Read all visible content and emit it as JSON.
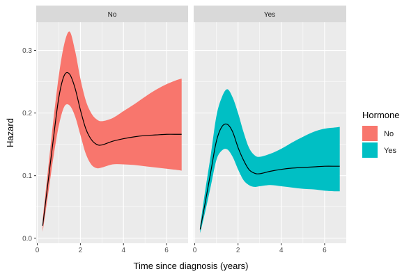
{
  "chart_data": {
    "type": "area",
    "facet_variable": "Hormone",
    "panels": [
      {
        "label": "No",
        "color": "#F8766D",
        "x": [
          0.25,
          0.5,
          0.75,
          1.0,
          1.25,
          1.5,
          1.75,
          2.0,
          2.25,
          2.5,
          2.75,
          3.0,
          3.5,
          4.0,
          4.5,
          5.0,
          5.5,
          6.0,
          6.5,
          6.7
        ],
        "hazard": [
          0.02,
          0.09,
          0.16,
          0.225,
          0.26,
          0.262,
          0.24,
          0.205,
          0.175,
          0.158,
          0.15,
          0.149,
          0.155,
          0.159,
          0.162,
          0.164,
          0.165,
          0.166,
          0.166,
          0.166
        ],
        "lower": [
          0.01,
          0.07,
          0.13,
          0.18,
          0.21,
          0.212,
          0.195,
          0.165,
          0.135,
          0.118,
          0.112,
          0.113,
          0.118,
          0.118,
          0.117,
          0.115,
          0.113,
          0.111,
          0.109,
          0.108
        ],
        "upper": [
          0.03,
          0.11,
          0.19,
          0.26,
          0.31,
          0.33,
          0.3,
          0.255,
          0.22,
          0.2,
          0.19,
          0.187,
          0.192,
          0.203,
          0.214,
          0.226,
          0.237,
          0.246,
          0.253,
          0.255
        ]
      },
      {
        "label": "Yes",
        "color": "#00BFC4",
        "x": [
          0.25,
          0.5,
          0.75,
          1.0,
          1.25,
          1.5,
          1.75,
          2.0,
          2.25,
          2.5,
          2.75,
          3.0,
          3.5,
          4.0,
          4.5,
          5.0,
          5.5,
          6.0,
          6.5,
          6.7
        ],
        "hazard": [
          0.014,
          0.06,
          0.108,
          0.155,
          0.178,
          0.182,
          0.17,
          0.145,
          0.125,
          0.11,
          0.104,
          0.103,
          0.107,
          0.11,
          0.112,
          0.113,
          0.114,
          0.115,
          0.115,
          0.115
        ],
        "lower": [
          0.008,
          0.045,
          0.085,
          0.125,
          0.14,
          0.142,
          0.13,
          0.11,
          0.093,
          0.085,
          0.082,
          0.083,
          0.085,
          0.083,
          0.081,
          0.079,
          0.078,
          0.076,
          0.075,
          0.075
        ],
        "upper": [
          0.02,
          0.08,
          0.135,
          0.195,
          0.225,
          0.238,
          0.225,
          0.2,
          0.17,
          0.145,
          0.133,
          0.13,
          0.135,
          0.143,
          0.153,
          0.162,
          0.17,
          0.175,
          0.177,
          0.178
        ]
      }
    ],
    "xlabel": "Time since diagnosis (years)",
    "ylabel": "Hazard",
    "xlim": [
      -0.05,
      7.0
    ],
    "ylim": [
      -0.008,
      0.345
    ],
    "x_ticks": [
      0,
      2,
      4,
      6
    ],
    "x_tick_labels": [
      "0",
      "2",
      "4",
      "6"
    ],
    "y_ticks": [
      0.0,
      0.1,
      0.2,
      0.3
    ],
    "y_tick_labels": [
      "0.0",
      "0.1",
      "0.2",
      "0.3"
    ],
    "grid": true,
    "legend": {
      "title": "Hormone",
      "placement": "right",
      "entries": [
        {
          "label": "No",
          "color": "#F8766D"
        },
        {
          "label": "Yes",
          "color": "#00BFC4"
        }
      ]
    },
    "colors": {
      "panel_background": "#EBEBEB",
      "strip_background": "#D9D9D9",
      "grid": "#FFFFFF",
      "curve": "#000000"
    }
  }
}
